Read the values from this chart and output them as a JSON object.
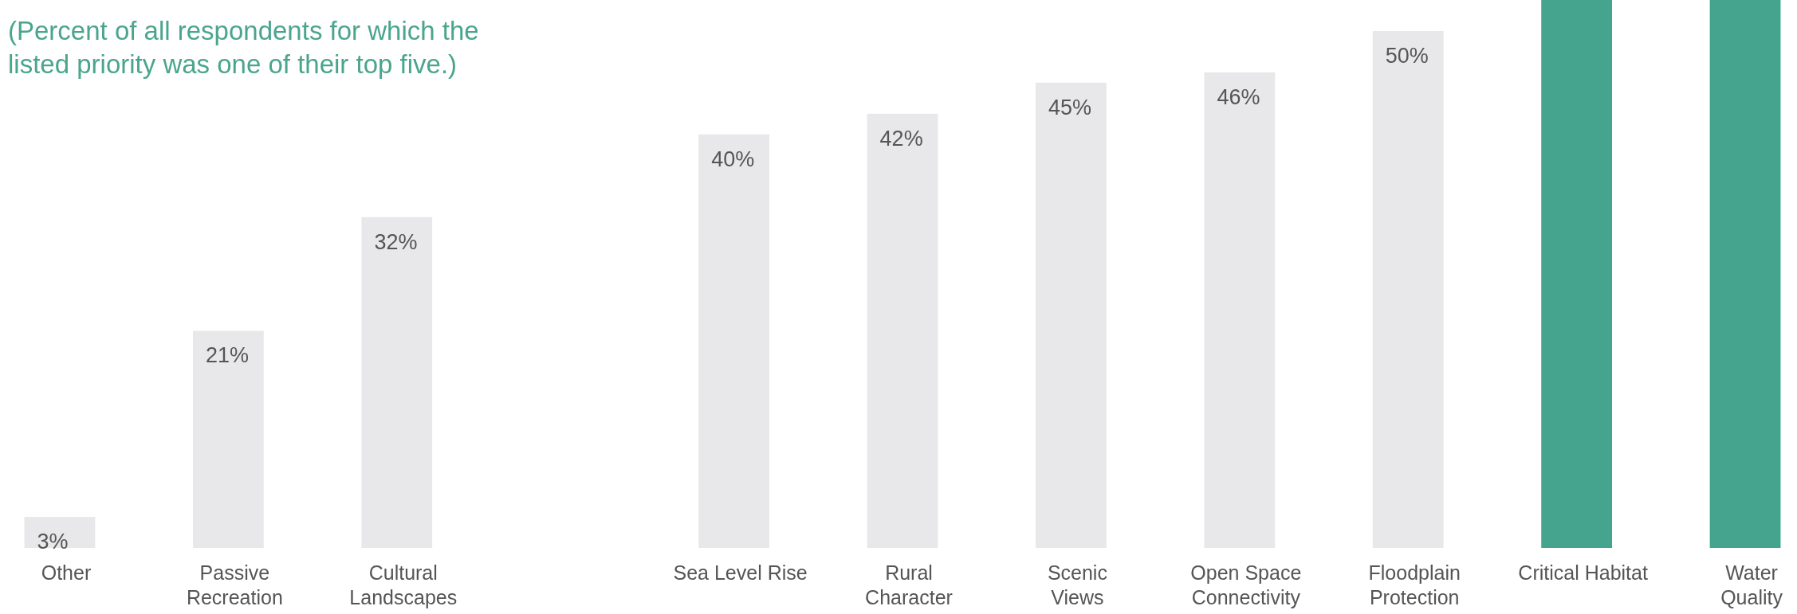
{
  "chart_data": {
    "type": "bar",
    "subtitle": "(Percent of all respondents for which the listed priority was one of their top five.)",
    "categories": [
      "Other",
      "Passive\nRecreation",
      "Cultural\nLandscapes",
      null,
      "Sea Level Rise",
      "Rural\nCharacter",
      "Scenic\nViews",
      "Open Space\nConnectivity",
      "Floodplain\nProtection",
      "Critical Habitat",
      "Water\nQuality"
    ],
    "values": [
      3,
      21,
      32,
      null,
      40,
      42,
      45,
      46,
      50,
      53,
      53
    ],
    "value_labels": [
      "3%",
      "21%",
      "32%",
      null,
      "40%",
      "42%",
      "45%",
      "46%",
      "50%",
      null,
      null
    ],
    "colors": [
      "#e8e8ea",
      "#e8e8ea",
      "#e8e8ea",
      null,
      "#e8e8ea",
      "#e8e8ea",
      "#e8e8ea",
      "#e8e8ea",
      "#e8e8ea",
      "#45a48d",
      "#45a48d"
    ],
    "ylim": [
      0,
      53
    ]
  }
}
